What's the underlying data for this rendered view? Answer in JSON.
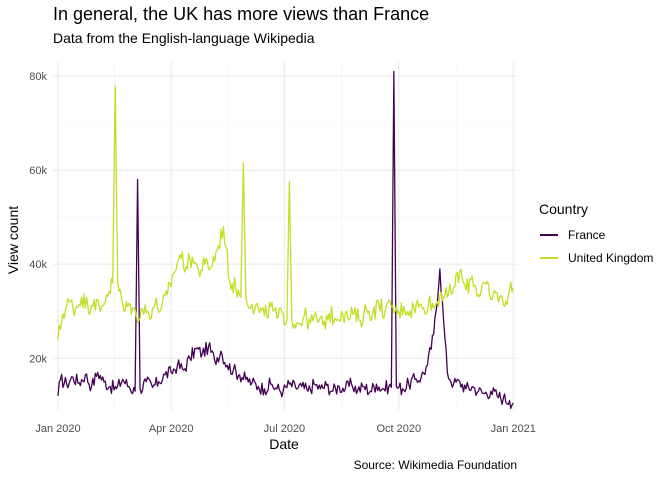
{
  "chart_data": {
    "type": "line",
    "title": "In general, the UK has more views than France",
    "subtitle": "Data from the English-language Wikipedia",
    "caption": "Source: Wikimedia Foundation",
    "xlabel": "Date",
    "ylabel": "View count",
    "xlim": [
      "2019-12-28",
      "2021-01-04"
    ],
    "ylim": [
      9000,
      83000
    ],
    "x_ticks": [
      "2020-01-01",
      "2020-04-01",
      "2020-07-01",
      "2020-10-01",
      "2021-01-01"
    ],
    "x_tick_labels": [
      "Jan 2020",
      "Apr 2020",
      "Jul 2020",
      "Oct 2020",
      "Jan 2021"
    ],
    "y_ticks": [
      20000,
      40000,
      60000,
      80000
    ],
    "y_tick_labels": [
      "20k",
      "40k",
      "60k",
      "80k"
    ],
    "grid": true,
    "legend": {
      "title": "Country",
      "position": "right"
    },
    "series": [
      {
        "name": "France",
        "color": "#440154",
        "points": [
          [
            "2020-01-01",
            12000
          ],
          [
            "2020-01-03",
            15500
          ],
          [
            "2020-01-08",
            14500
          ],
          [
            "2020-01-13",
            16000
          ],
          [
            "2020-01-18",
            14800
          ],
          [
            "2020-01-23",
            16500
          ],
          [
            "2020-01-28",
            14000
          ],
          [
            "2020-02-02",
            17000
          ],
          [
            "2020-02-07",
            15000
          ],
          [
            "2020-02-12",
            14000
          ],
          [
            "2020-02-17",
            13500
          ],
          [
            "2020-02-22",
            15500
          ],
          [
            "2020-02-27",
            14000
          ],
          [
            "2020-03-03",
            13000
          ],
          [
            "2020-03-05",
            58000
          ],
          [
            "2020-03-07",
            13500
          ],
          [
            "2020-03-12",
            15000
          ],
          [
            "2020-03-17",
            13800
          ],
          [
            "2020-03-22",
            15000
          ],
          [
            "2020-03-27",
            16500
          ],
          [
            "2020-04-01",
            17000
          ],
          [
            "2020-04-06",
            18500
          ],
          [
            "2020-04-11",
            17500
          ],
          [
            "2020-04-16",
            20000
          ],
          [
            "2020-04-21",
            22000
          ],
          [
            "2020-04-26",
            21000
          ],
          [
            "2020-05-01",
            22500
          ],
          [
            "2020-05-06",
            19500
          ],
          [
            "2020-05-11",
            21500
          ],
          [
            "2020-05-16",
            18500
          ],
          [
            "2020-05-21",
            17500
          ],
          [
            "2020-05-26",
            16500
          ],
          [
            "2020-05-31",
            15500
          ],
          [
            "2020-06-05",
            14800
          ],
          [
            "2020-06-10",
            14000
          ],
          [
            "2020-06-15",
            13500
          ],
          [
            "2020-06-20",
            14500
          ],
          [
            "2020-06-25",
            13500
          ],
          [
            "2020-06-30",
            13000
          ],
          [
            "2020-07-05",
            14500
          ],
          [
            "2020-07-10",
            13800
          ],
          [
            "2020-07-15",
            14000
          ],
          [
            "2020-07-20",
            13000
          ],
          [
            "2020-07-25",
            14500
          ],
          [
            "2020-07-30",
            13500
          ],
          [
            "2020-08-04",
            14200
          ],
          [
            "2020-08-09",
            13000
          ],
          [
            "2020-08-14",
            14000
          ],
          [
            "2020-08-19",
            13500
          ],
          [
            "2020-08-24",
            14500
          ],
          [
            "2020-08-29",
            13200
          ],
          [
            "2020-09-03",
            14000
          ],
          [
            "2020-09-08",
            13000
          ],
          [
            "2020-09-13",
            14500
          ],
          [
            "2020-09-18",
            13500
          ],
          [
            "2020-09-23",
            14000
          ],
          [
            "2020-09-25",
            13800
          ],
          [
            "2020-09-27",
            81000
          ],
          [
            "2020-09-29",
            14000
          ],
          [
            "2020-10-04",
            13500
          ],
          [
            "2020-10-09",
            14500
          ],
          [
            "2020-10-14",
            15500
          ],
          [
            "2020-10-19",
            16000
          ],
          [
            "2020-10-24",
            18500
          ],
          [
            "2020-10-29",
            25000
          ],
          [
            "2020-11-03",
            39000
          ],
          [
            "2020-11-06",
            28000
          ],
          [
            "2020-11-09",
            17000
          ],
          [
            "2020-11-14",
            14500
          ],
          [
            "2020-11-19",
            15000
          ],
          [
            "2020-11-24",
            13500
          ],
          [
            "2020-11-29",
            14000
          ],
          [
            "2020-12-04",
            13000
          ],
          [
            "2020-12-09",
            12500
          ],
          [
            "2020-12-14",
            13000
          ],
          [
            "2020-12-19",
            12000
          ],
          [
            "2020-12-24",
            11500
          ],
          [
            "2020-12-29",
            11000
          ],
          [
            "2021-01-01",
            10500
          ]
        ]
      },
      {
        "name": "United Kingdom",
        "color": "#c2df23",
        "points": [
          [
            "2020-01-01",
            24000
          ],
          [
            "2020-01-05",
            29500
          ],
          [
            "2020-01-10",
            32000
          ],
          [
            "2020-01-15",
            30500
          ],
          [
            "2020-01-20",
            33000
          ],
          [
            "2020-01-25",
            31000
          ],
          [
            "2020-01-30",
            32500
          ],
          [
            "2020-02-04",
            30000
          ],
          [
            "2020-02-09",
            33500
          ],
          [
            "2020-02-14",
            36000
          ],
          [
            "2020-02-16",
            78000
          ],
          [
            "2020-02-18",
            36000
          ],
          [
            "2020-02-23",
            30000
          ],
          [
            "2020-02-28",
            31500
          ],
          [
            "2020-03-04",
            29000
          ],
          [
            "2020-03-09",
            30500
          ],
          [
            "2020-03-14",
            29500
          ],
          [
            "2020-03-19",
            31500
          ],
          [
            "2020-03-24",
            30500
          ],
          [
            "2020-03-29",
            33500
          ],
          [
            "2020-04-03",
            38000
          ],
          [
            "2020-04-08",
            42000
          ],
          [
            "2020-04-13",
            39500
          ],
          [
            "2020-04-18",
            41500
          ],
          [
            "2020-04-23",
            38500
          ],
          [
            "2020-04-28",
            40000
          ],
          [
            "2020-05-03",
            39500
          ],
          [
            "2020-05-08",
            43000
          ],
          [
            "2020-05-13",
            48000
          ],
          [
            "2020-05-18",
            36500
          ],
          [
            "2020-05-23",
            35000
          ],
          [
            "2020-05-27",
            33000
          ],
          [
            "2020-05-29",
            61500
          ],
          [
            "2020-05-31",
            33000
          ],
          [
            "2020-06-05",
            31500
          ],
          [
            "2020-06-10",
            30500
          ],
          [
            "2020-06-15",
            29000
          ],
          [
            "2020-06-20",
            31000
          ],
          [
            "2020-06-25",
            28500
          ],
          [
            "2020-06-30",
            29500
          ],
          [
            "2020-07-03",
            28000
          ],
          [
            "2020-07-05",
            57500
          ],
          [
            "2020-07-07",
            28000
          ],
          [
            "2020-07-12",
            27500
          ],
          [
            "2020-07-17",
            29000
          ],
          [
            "2020-07-22",
            27500
          ],
          [
            "2020-07-27",
            28500
          ],
          [
            "2020-08-01",
            27000
          ],
          [
            "2020-08-06",
            29500
          ],
          [
            "2020-08-11",
            28500
          ],
          [
            "2020-08-16",
            30000
          ],
          [
            "2020-08-21",
            28500
          ],
          [
            "2020-08-26",
            29500
          ],
          [
            "2020-08-31",
            28000
          ],
          [
            "2020-09-05",
            30500
          ],
          [
            "2020-09-10",
            29500
          ],
          [
            "2020-09-15",
            31500
          ],
          [
            "2020-09-20",
            30000
          ],
          [
            "2020-09-25",
            31000
          ],
          [
            "2020-09-30",
            29500
          ],
          [
            "2020-10-05",
            31000
          ],
          [
            "2020-10-10",
            30000
          ],
          [
            "2020-10-15",
            31500
          ],
          [
            "2020-10-20",
            30500
          ],
          [
            "2020-10-25",
            32000
          ],
          [
            "2020-10-30",
            31000
          ],
          [
            "2020-11-04",
            34000
          ],
          [
            "2020-11-09",
            33000
          ],
          [
            "2020-11-14",
            35000
          ],
          [
            "2020-11-19",
            38500
          ],
          [
            "2020-11-24",
            34500
          ],
          [
            "2020-11-29",
            37500
          ],
          [
            "2020-12-04",
            33500
          ],
          [
            "2020-12-09",
            36000
          ],
          [
            "2020-12-14",
            32500
          ],
          [
            "2020-12-19",
            34000
          ],
          [
            "2020-12-24",
            31500
          ],
          [
            "2020-12-29",
            34500
          ],
          [
            "2021-01-01",
            35000
          ]
        ]
      }
    ]
  }
}
